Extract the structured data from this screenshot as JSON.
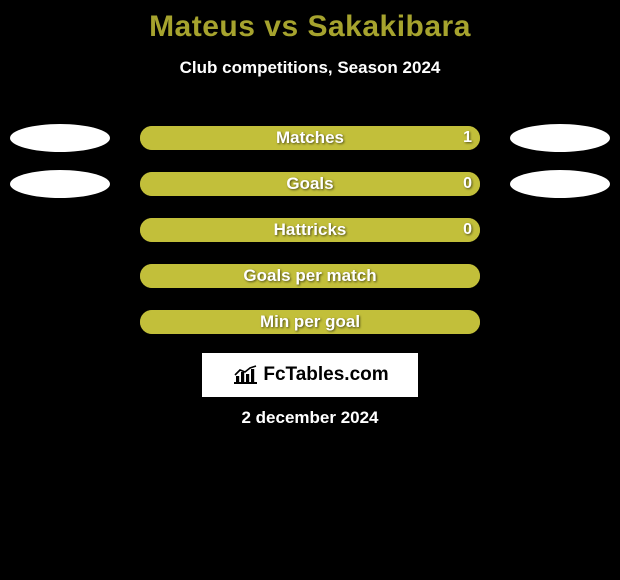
{
  "page": {
    "background_color": "#000000",
    "text_color": "#ffffff",
    "title_color": "#a6a32e",
    "bar_bg_color": "#a6a32e",
    "bar_fill_color": "#c2bf3a",
    "pill_color": "#ffffff",
    "logo_bg_color": "#ffffff",
    "logo_text_color": "#000000"
  },
  "header": {
    "title": "Mateus vs Sakakibara",
    "subtitle": "Club competitions, Season 2024"
  },
  "rows": [
    {
      "label": "Matches",
      "left_val": "",
      "right_val": "1",
      "fill_pct": 100,
      "left_pill": true,
      "right_pill": true
    },
    {
      "label": "Goals",
      "left_val": "",
      "right_val": "0",
      "fill_pct": 100,
      "left_pill": true,
      "right_pill": true
    },
    {
      "label": "Hattricks",
      "left_val": "",
      "right_val": "0",
      "fill_pct": 100,
      "left_pill": false,
      "right_pill": false
    },
    {
      "label": "Goals per match",
      "left_val": "",
      "right_val": "",
      "fill_pct": 100,
      "left_pill": false,
      "right_pill": false
    },
    {
      "label": "Min per goal",
      "left_val": "",
      "right_val": "",
      "fill_pct": 100,
      "left_pill": false,
      "right_pill": false
    }
  ],
  "footer": {
    "logo_text": "FcTables.com",
    "date": "2 december 2024"
  }
}
